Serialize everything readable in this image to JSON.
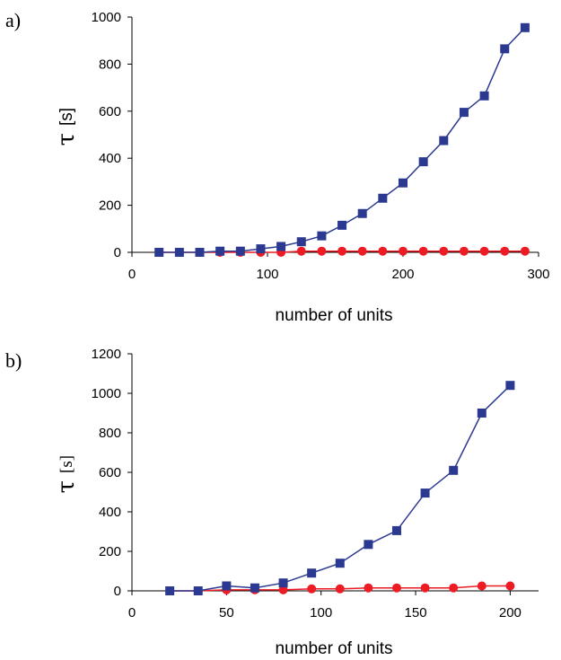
{
  "chart_data": [
    {
      "type": "line",
      "panel_label": "a)",
      "xlabel": "number of units",
      "ylabel_symbol": "τ",
      "ylabel_unit": "[s]",
      "xlim": [
        0,
        300
      ],
      "ylim": [
        0,
        1000
      ],
      "xticks": [
        "0",
        "100",
        "200",
        "300"
      ],
      "yticks": [
        "0",
        "200",
        "400",
        "600",
        "800",
        "1000"
      ],
      "colors": {
        "squares": "#2b3990",
        "circles": "#ed1c24"
      },
      "series": [
        {
          "marker": "square",
          "x": [
            20,
            35,
            50,
            65,
            80,
            95,
            110,
            125,
            140,
            155,
            170,
            185,
            200,
            215,
            230,
            245,
            260,
            275,
            290
          ],
          "values": [
            0,
            0,
            0,
            5,
            5,
            15,
            25,
            45,
            70,
            115,
            165,
            230,
            295,
            385,
            475,
            595,
            665,
            865,
            955
          ]
        },
        {
          "marker": "circle",
          "x": [
            20,
            35,
            50,
            65,
            80,
            95,
            110,
            125,
            140,
            155,
            170,
            185,
            200,
            215,
            230,
            245,
            260,
            275,
            290
          ],
          "values": [
            0,
            0,
            0,
            0,
            0,
            0,
            0,
            5,
            5,
            5,
            5,
            5,
            5,
            5,
            5,
            5,
            5,
            5,
            5
          ]
        }
      ]
    },
    {
      "type": "line",
      "panel_label": "b)",
      "xlabel": "number of units",
      "ylabel_symbol": "τ",
      "ylabel_unit": "[s]",
      "xlim": [
        0,
        215
      ],
      "ylim": [
        0,
        1200
      ],
      "xticks": [
        "0",
        "50",
        "100",
        "150",
        "200"
      ],
      "yticks": [
        "0",
        "200",
        "400",
        "600",
        "800",
        "1000",
        "1200"
      ],
      "colors": {
        "squares": "#2b3990",
        "circles": "#ed1c24"
      },
      "series": [
        {
          "marker": "square",
          "x": [
            20,
            35,
            50,
            65,
            80,
            95,
            110,
            125,
            140,
            155,
            170,
            185,
            200
          ],
          "values": [
            0,
            0,
            25,
            15,
            40,
            90,
            140,
            235,
            305,
            495,
            610,
            900,
            1040
          ]
        },
        {
          "marker": "circle",
          "x": [
            20,
            35,
            50,
            65,
            80,
            95,
            110,
            125,
            140,
            155,
            170,
            185,
            200
          ],
          "values": [
            0,
            0,
            5,
            5,
            5,
            10,
            10,
            15,
            15,
            15,
            15,
            25,
            25
          ]
        }
      ]
    }
  ]
}
